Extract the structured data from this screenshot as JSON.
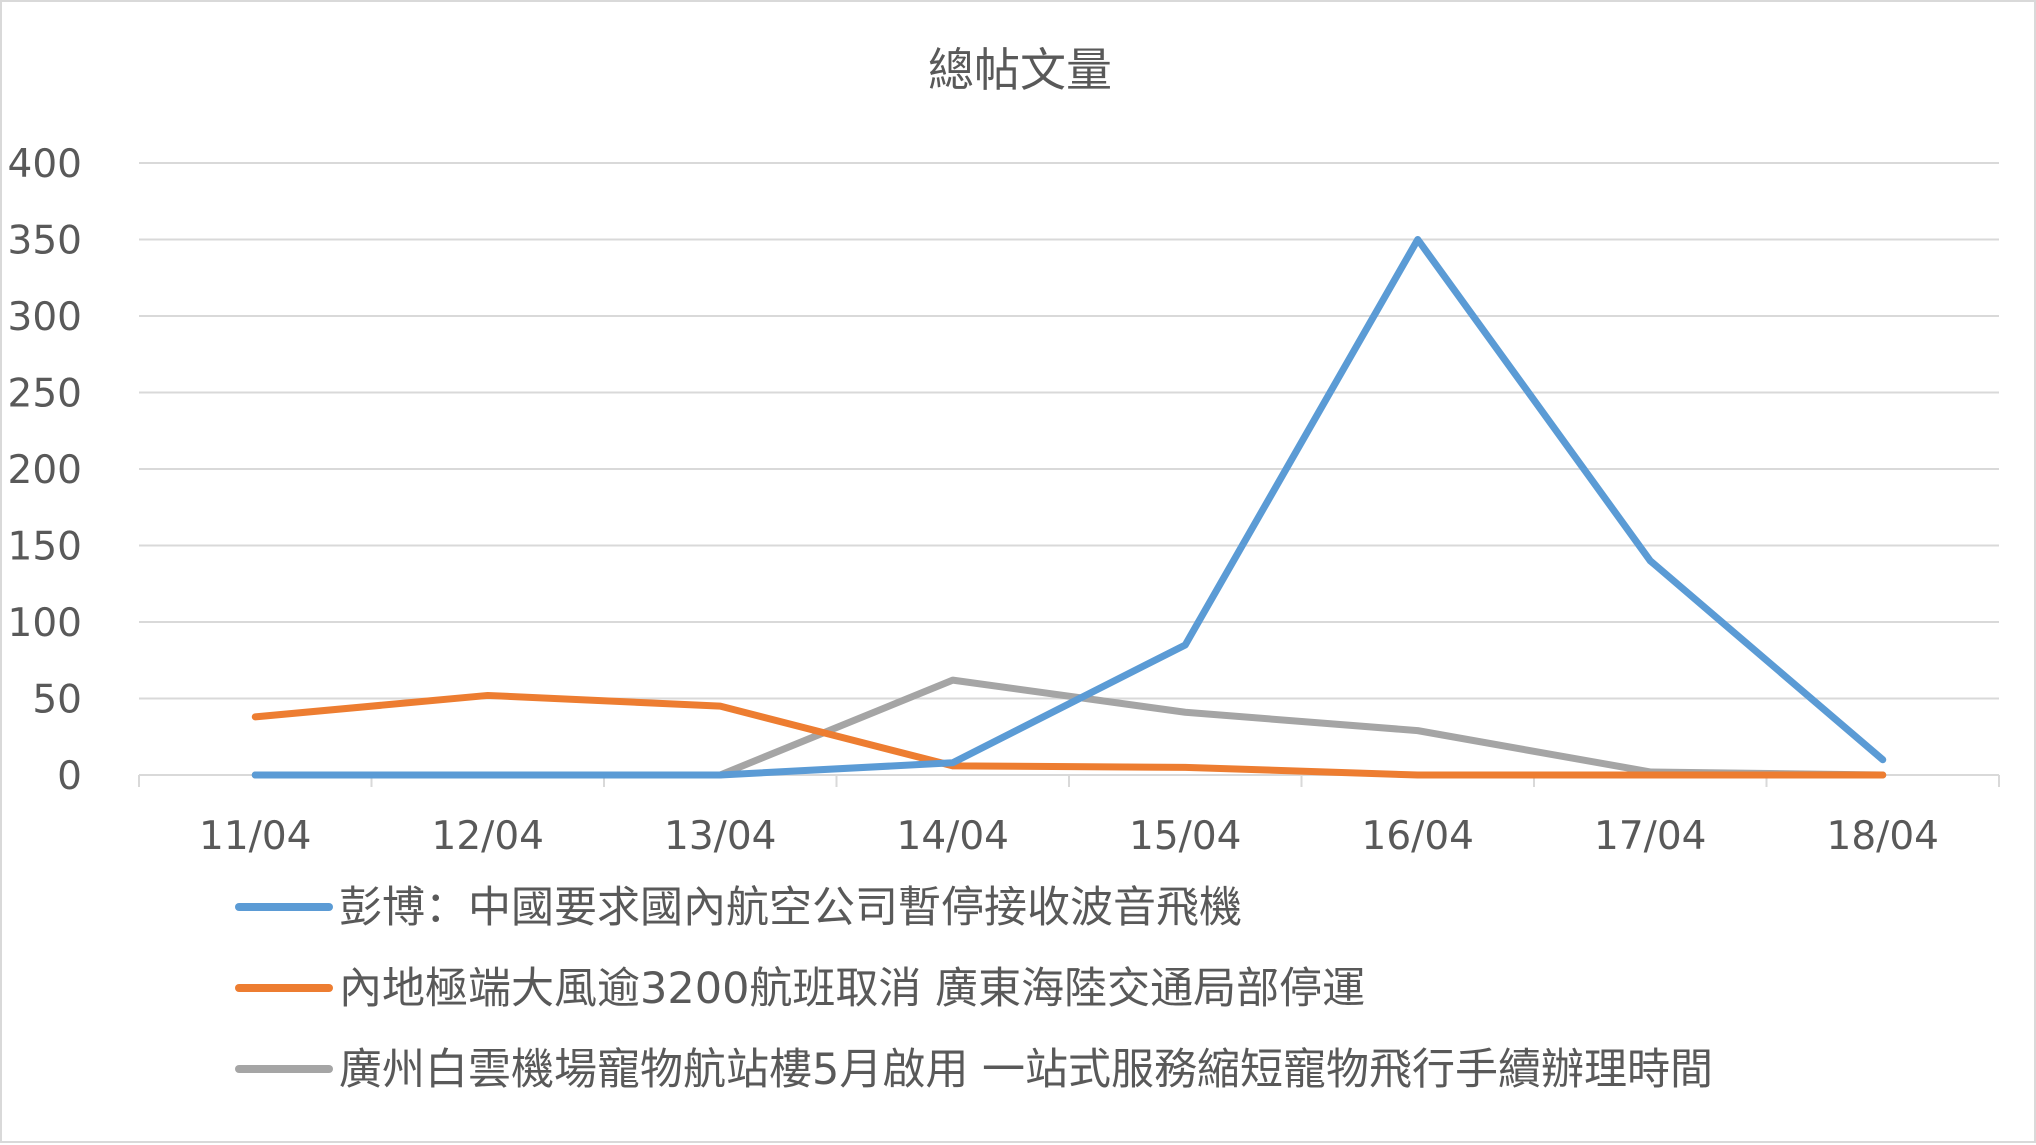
{
  "chart_data": {
    "type": "line",
    "title": "總帖文量",
    "xlabel": "",
    "ylabel": "",
    "categories": [
      "11/04",
      "12/04",
      "13/04",
      "14/04",
      "15/04",
      "16/04",
      "17/04",
      "18/04"
    ],
    "ylim": [
      0,
      400
    ],
    "yticks": [
      0,
      50,
      100,
      150,
      200,
      250,
      300,
      350,
      400
    ],
    "grid": true,
    "legend_position": "bottom",
    "series": [
      {
        "name": "彭博：中國要求國內航空公司暫停接收波音飛機",
        "color": "#5b9bd5",
        "values": [
          0,
          0,
          0,
          8,
          85,
          350,
          140,
          10
        ]
      },
      {
        "name": "內地極端大風逾3200航班取消 廣東海陸交通局部停運",
        "color": "#ed7d31",
        "values": [
          38,
          52,
          45,
          6,
          5,
          0,
          0,
          0
        ]
      },
      {
        "name": "廣州白雲機場寵物航站樓5月啟用 一站式服務縮短寵物飛行手續辦理時間",
        "color": "#a5a5a5",
        "values": [
          0,
          0,
          0,
          62,
          41,
          29,
          2,
          0
        ]
      }
    ]
  }
}
